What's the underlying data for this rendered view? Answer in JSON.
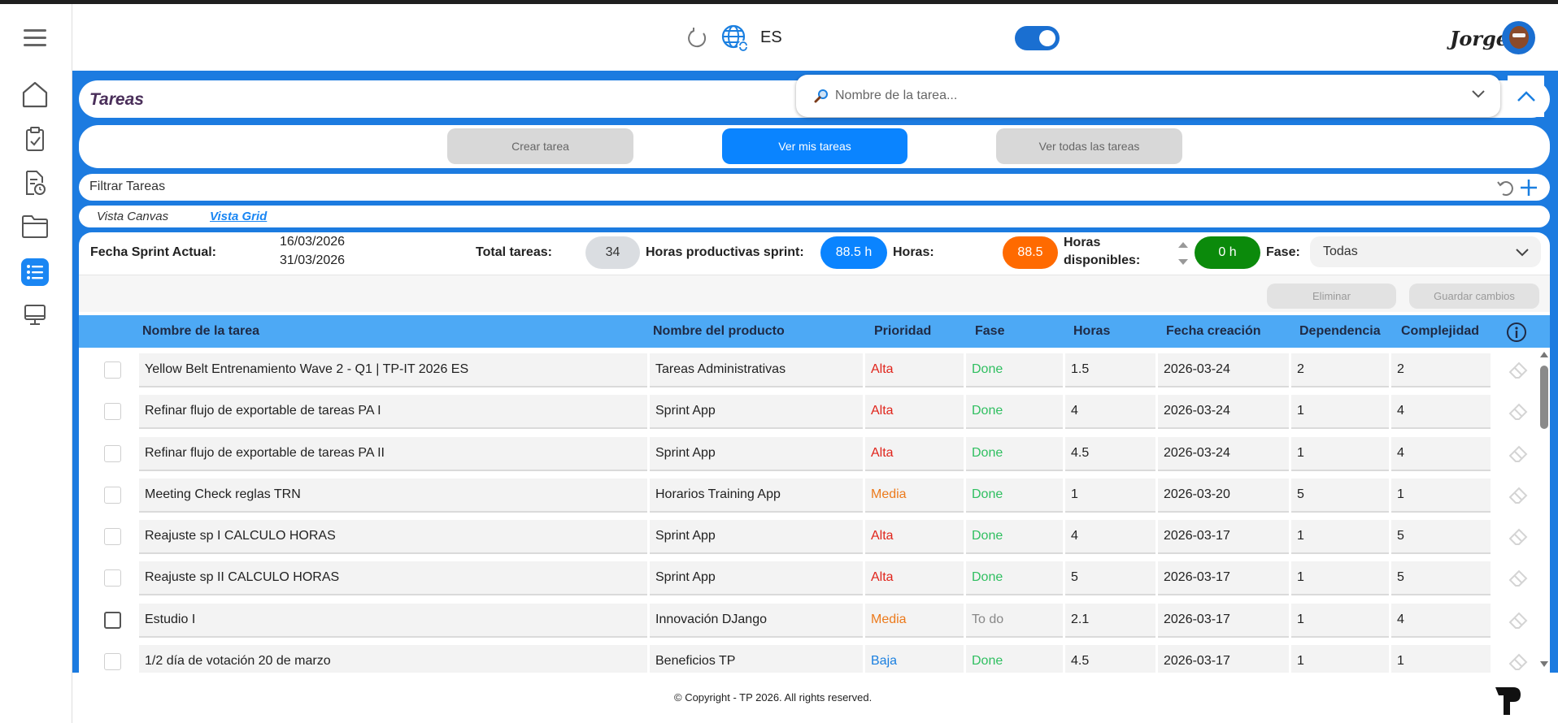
{
  "header": {
    "language": "ES",
    "user_name": "Jorge"
  },
  "tasks_card": {
    "title": "Tareas",
    "search_placeholder": "Nombre de la tarea..."
  },
  "actions": {
    "create": "Crear tarea",
    "mine": "Ver mis tareas",
    "all": "Ver todas las tareas"
  },
  "filter": {
    "title": "Filtrar Tareas"
  },
  "views": {
    "canvas": "Vista Canvas",
    "grid": "Vista Grid"
  },
  "stats": {
    "sprint_label": "Fecha Sprint Actual:",
    "sprint_start": "16/03/2026",
    "sprint_end": "31/03/2026",
    "total_label": "Total tareas:",
    "total_value": "34",
    "productive_label": "Horas productivas sprint:",
    "productive_value": "88.5 h",
    "hours_label": "Horas:",
    "hours_value": "88.5",
    "available_label": "Horas disponibles:",
    "available_value": "0 h",
    "phase_label": "Fase:",
    "phase_value": "Todas"
  },
  "toolbar": {
    "delete": "Eliminar",
    "save": "Guardar cambios"
  },
  "table": {
    "headers": {
      "name": "Nombre de la tarea",
      "product": "Nombre del producto",
      "priority": "Prioridad",
      "phase": "Fase",
      "hours": "Horas",
      "created": "Fecha creación",
      "dependency": "Dependencia",
      "complexity": "Complejidad"
    },
    "rows": [
      {
        "name": "Yellow Belt Entrenamiento Wave 2 - Q1 | TP-IT 2026 ES",
        "product": "Tareas Administrativas",
        "priority": "Alta",
        "phase": "Done",
        "hours": "1.5",
        "created": "2026-03-24",
        "dependency": "2",
        "complexity": "2"
      },
      {
        "name": "Refinar flujo de exportable de tareas PA I",
        "product": "Sprint App",
        "priority": "Alta",
        "phase": "Done",
        "hours": "4",
        "created": "2026-03-24",
        "dependency": "1",
        "complexity": "4"
      },
      {
        "name": "Refinar flujo de exportable de tareas PA II",
        "product": "Sprint App",
        "priority": "Alta",
        "phase": "Done",
        "hours": "4.5",
        "created": "2026-03-24",
        "dependency": "1",
        "complexity": "4"
      },
      {
        "name": "Meeting Check reglas TRN",
        "product": "Horarios Training App",
        "priority": "Media",
        "phase": "Done",
        "hours": "1",
        "created": "2026-03-20",
        "dependency": "5",
        "complexity": "1"
      },
      {
        "name": "Reajuste sp I CALCULO HORAS",
        "product": "Sprint App",
        "priority": "Alta",
        "phase": "Done",
        "hours": "4",
        "created": "2026-03-17",
        "dependency": "1",
        "complexity": "5"
      },
      {
        "name": "Reajuste sp II CALCULO HORAS",
        "product": "Sprint App",
        "priority": "Alta",
        "phase": "Done",
        "hours": "5",
        "created": "2026-03-17",
        "dependency": "1",
        "complexity": "5"
      },
      {
        "name": "Estudio I",
        "product": "Innovación DJango",
        "priority": "Media",
        "phase": "To do",
        "hours": "2.1",
        "created": "2026-03-17",
        "dependency": "1",
        "complexity": "4"
      },
      {
        "name": "1/2 día de votación 20 de marzo",
        "product": "Beneficios TP",
        "priority": "Baja",
        "phase": "Done",
        "hours": "4.5",
        "created": "2026-03-17",
        "dependency": "1",
        "complexity": "1"
      }
    ]
  },
  "footer": {
    "copyright": "© Copyright - TP 2026. All rights reserved."
  },
  "colors": {
    "accent": "#1c7be0",
    "button_blue": "#0a84ff",
    "header_row": "#4da9f5",
    "hours_orange": "#ff6a00",
    "available_green": "#0b8a0b",
    "priority_alta": "#e0241b",
    "priority_media": "#ec7a1c",
    "priority_baja": "#1a7fe0",
    "phase_done": "#2fbf60"
  }
}
